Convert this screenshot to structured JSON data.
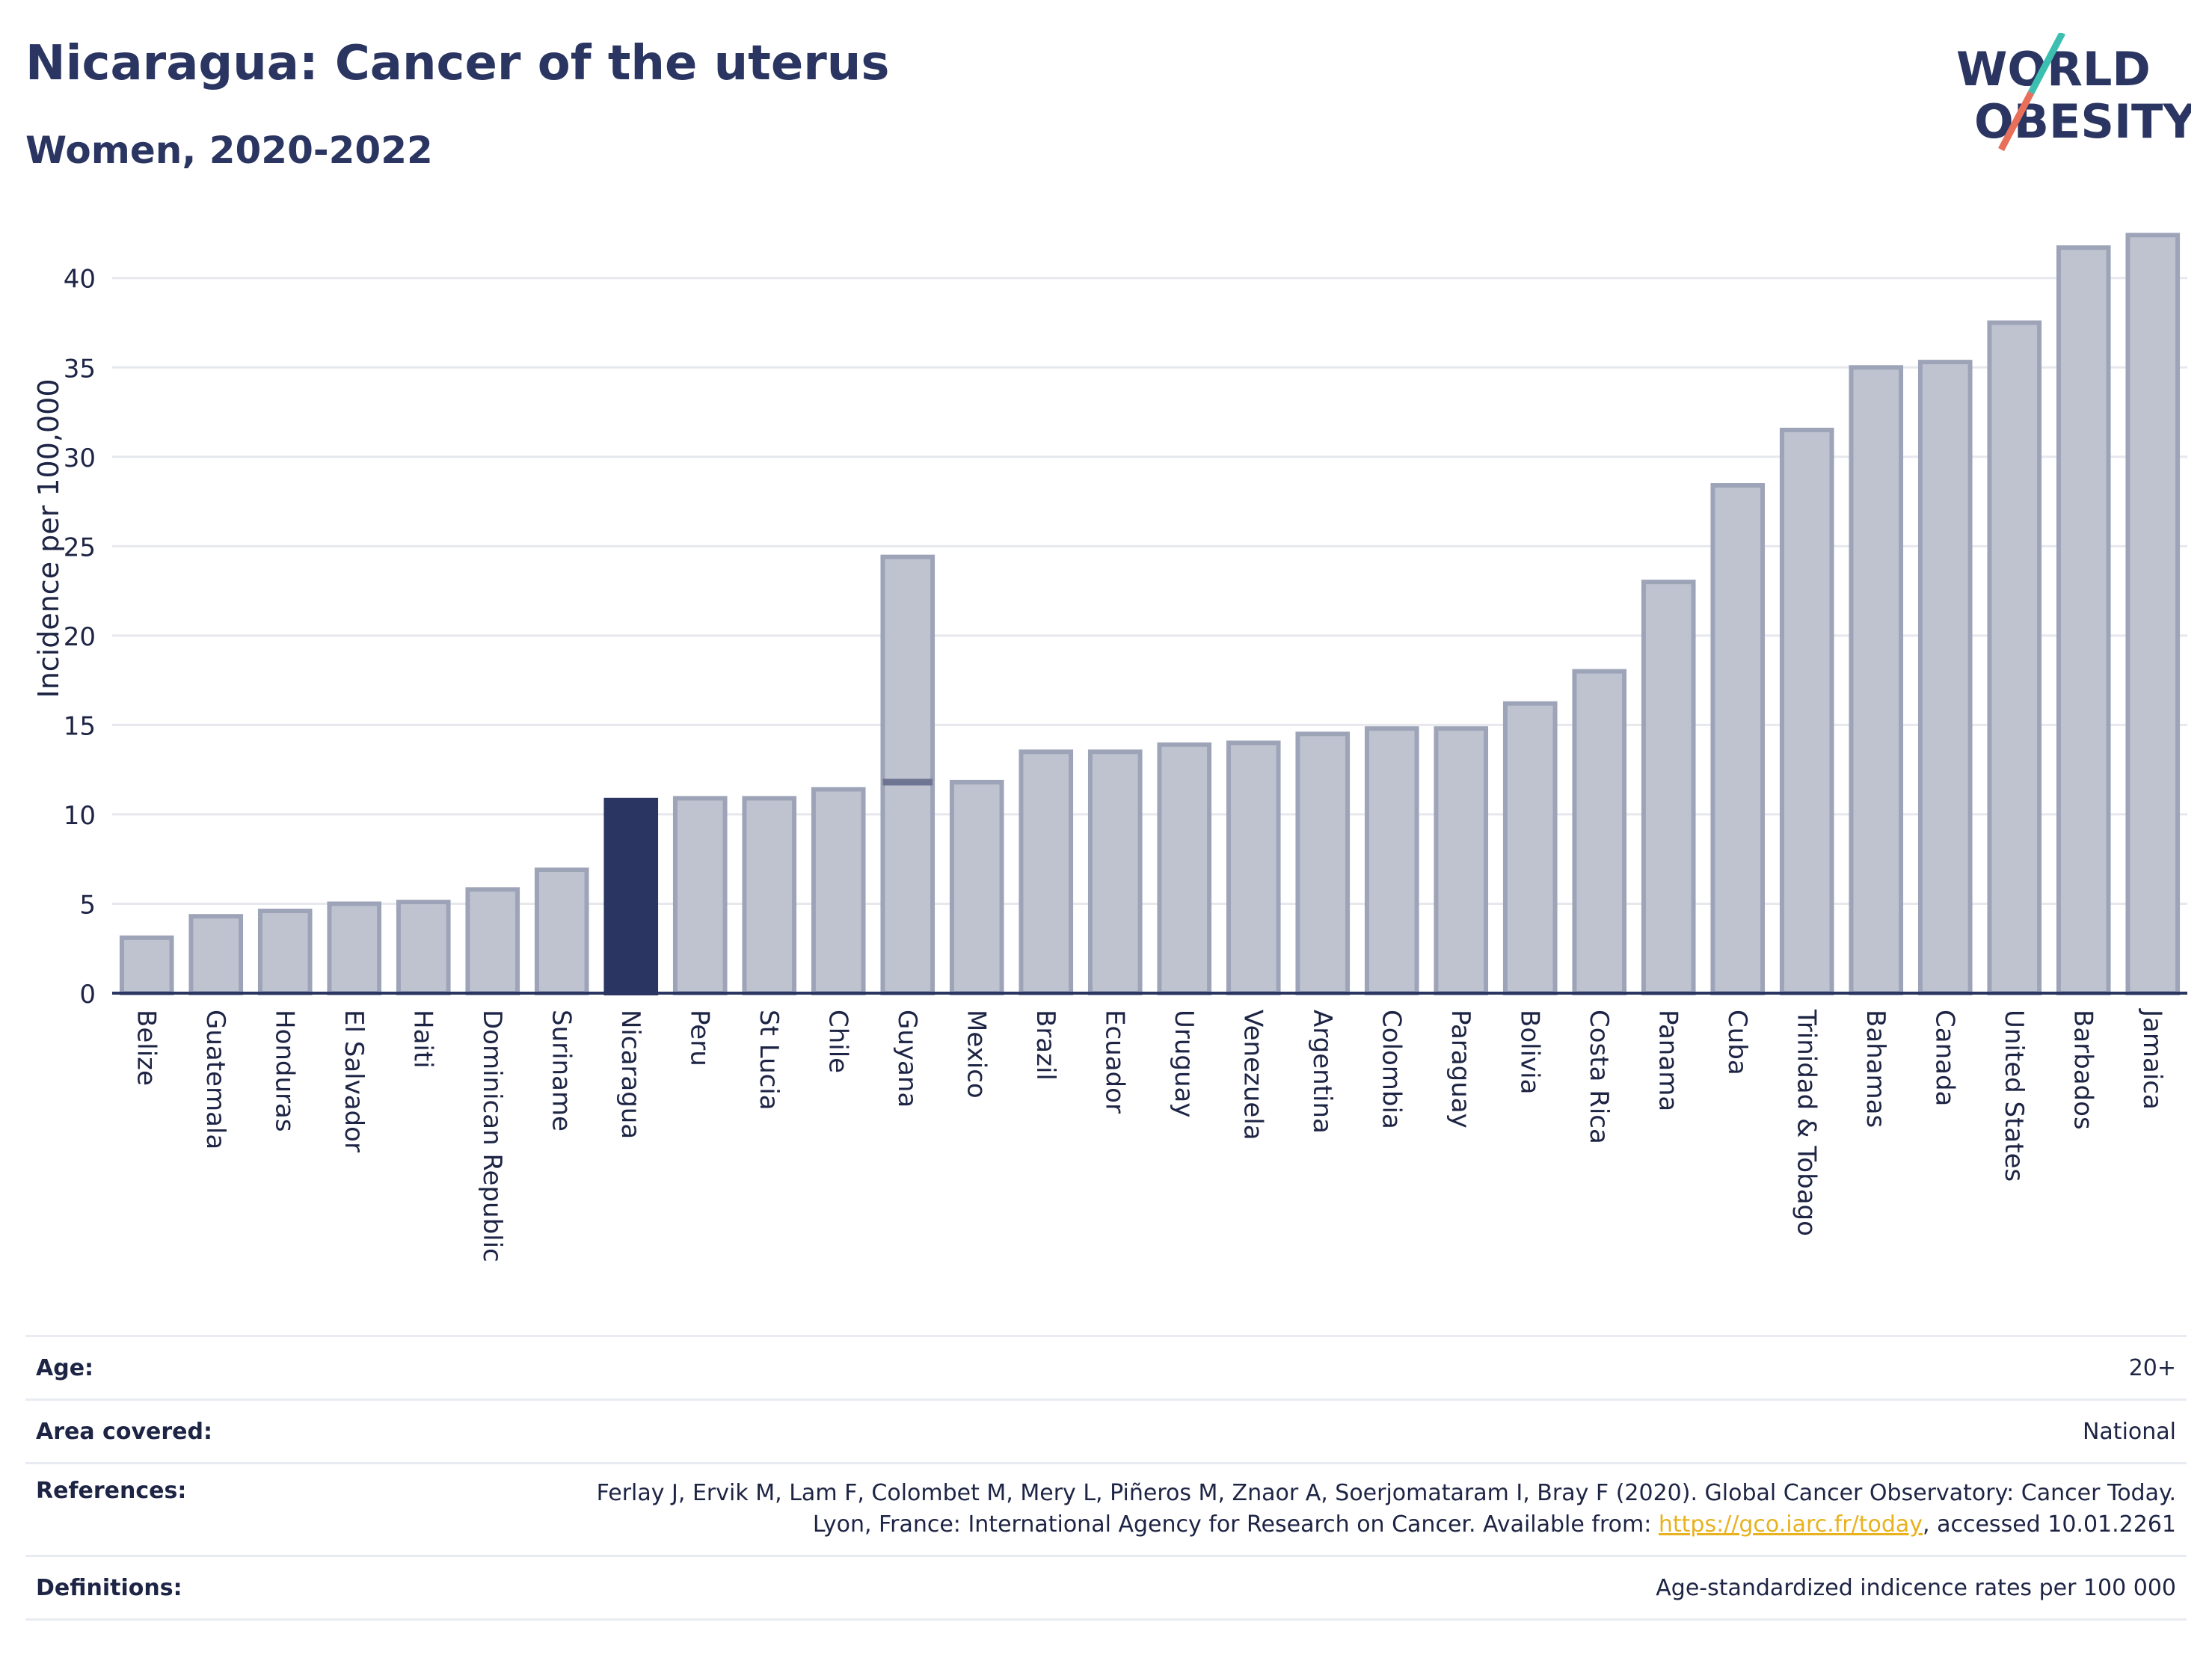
{
  "header": {
    "title": "Nicaragua: Cancer of the uterus",
    "subtitle": "Women, 2020-2022"
  },
  "logo": {
    "line1": "WORLD",
    "line2": "OBESITY",
    "color_text": "#2a3561",
    "color_slash_top": "#3cbfb0",
    "color_slash_bottom": "#e8705a"
  },
  "chart_data": {
    "type": "bar",
    "ylabel": "Incidence per 100,000",
    "yticks": [
      0,
      5,
      10,
      15,
      20,
      25,
      30,
      35,
      40
    ],
    "ylim": [
      0,
      43
    ],
    "grid": true,
    "highlight": "Nicaragua",
    "colors": {
      "bar": "#bfc3d0",
      "bar_edge": "#9ea4b8",
      "highlight": "#2a3561",
      "grid": "#e6e8ee",
      "axis": "#2a3561"
    },
    "categories": [
      "Belize",
      "Guatemala",
      "Honduras",
      "El Salvador",
      "Haiti",
      "Dominican Republic",
      "Suriname",
      "Nicaragua",
      "Peru",
      "St Lucia",
      "Chile",
      "Guyana",
      "Mexico",
      "Brazil",
      "Ecuador",
      "Uruguay",
      "Venezuela",
      "Argentina",
      "Colombia",
      "Paraguay",
      "Bolivia",
      "Costa Rica",
      "Panama",
      "Cuba",
      "Trinidad & Tobago",
      "Bahamas",
      "Canada",
      "United States",
      "Barbados",
      "Jamaica"
    ],
    "values": [
      3.1,
      4.3,
      4.6,
      5.0,
      5.1,
      5.8,
      6.9,
      10.8,
      10.9,
      10.9,
      11.4,
      24.4,
      11.8,
      13.5,
      13.5,
      13.9,
      14.0,
      14.5,
      14.8,
      14.8,
      16.2,
      18.0,
      23.0,
      28.4,
      31.5,
      35.0,
      35.3,
      37.5,
      41.7,
      42.4
    ],
    "secondary": {
      "Guyana": 11.8
    }
  },
  "meta": {
    "age_label": "Age:",
    "age_value": "20+",
    "area_label": "Area covered:",
    "area_value": "National",
    "references_label": "References:",
    "references_text": "Ferlay J, Ervik M, Lam F, Colombet M, Mery L, Piñeros M, Znaor A, Soerjomataram I, Bray F (2020). Global Cancer Observatory: Cancer Today. Lyon, France: International Agency for Research on Cancer. Available from:",
    "references_link": "https://gco.iarc.fr/today",
    "references_suffix": ", accessed 10.01.2261",
    "definitions_label": "Definitions:",
    "definitions_value": "Age-standardized indicence rates per 100 000"
  }
}
